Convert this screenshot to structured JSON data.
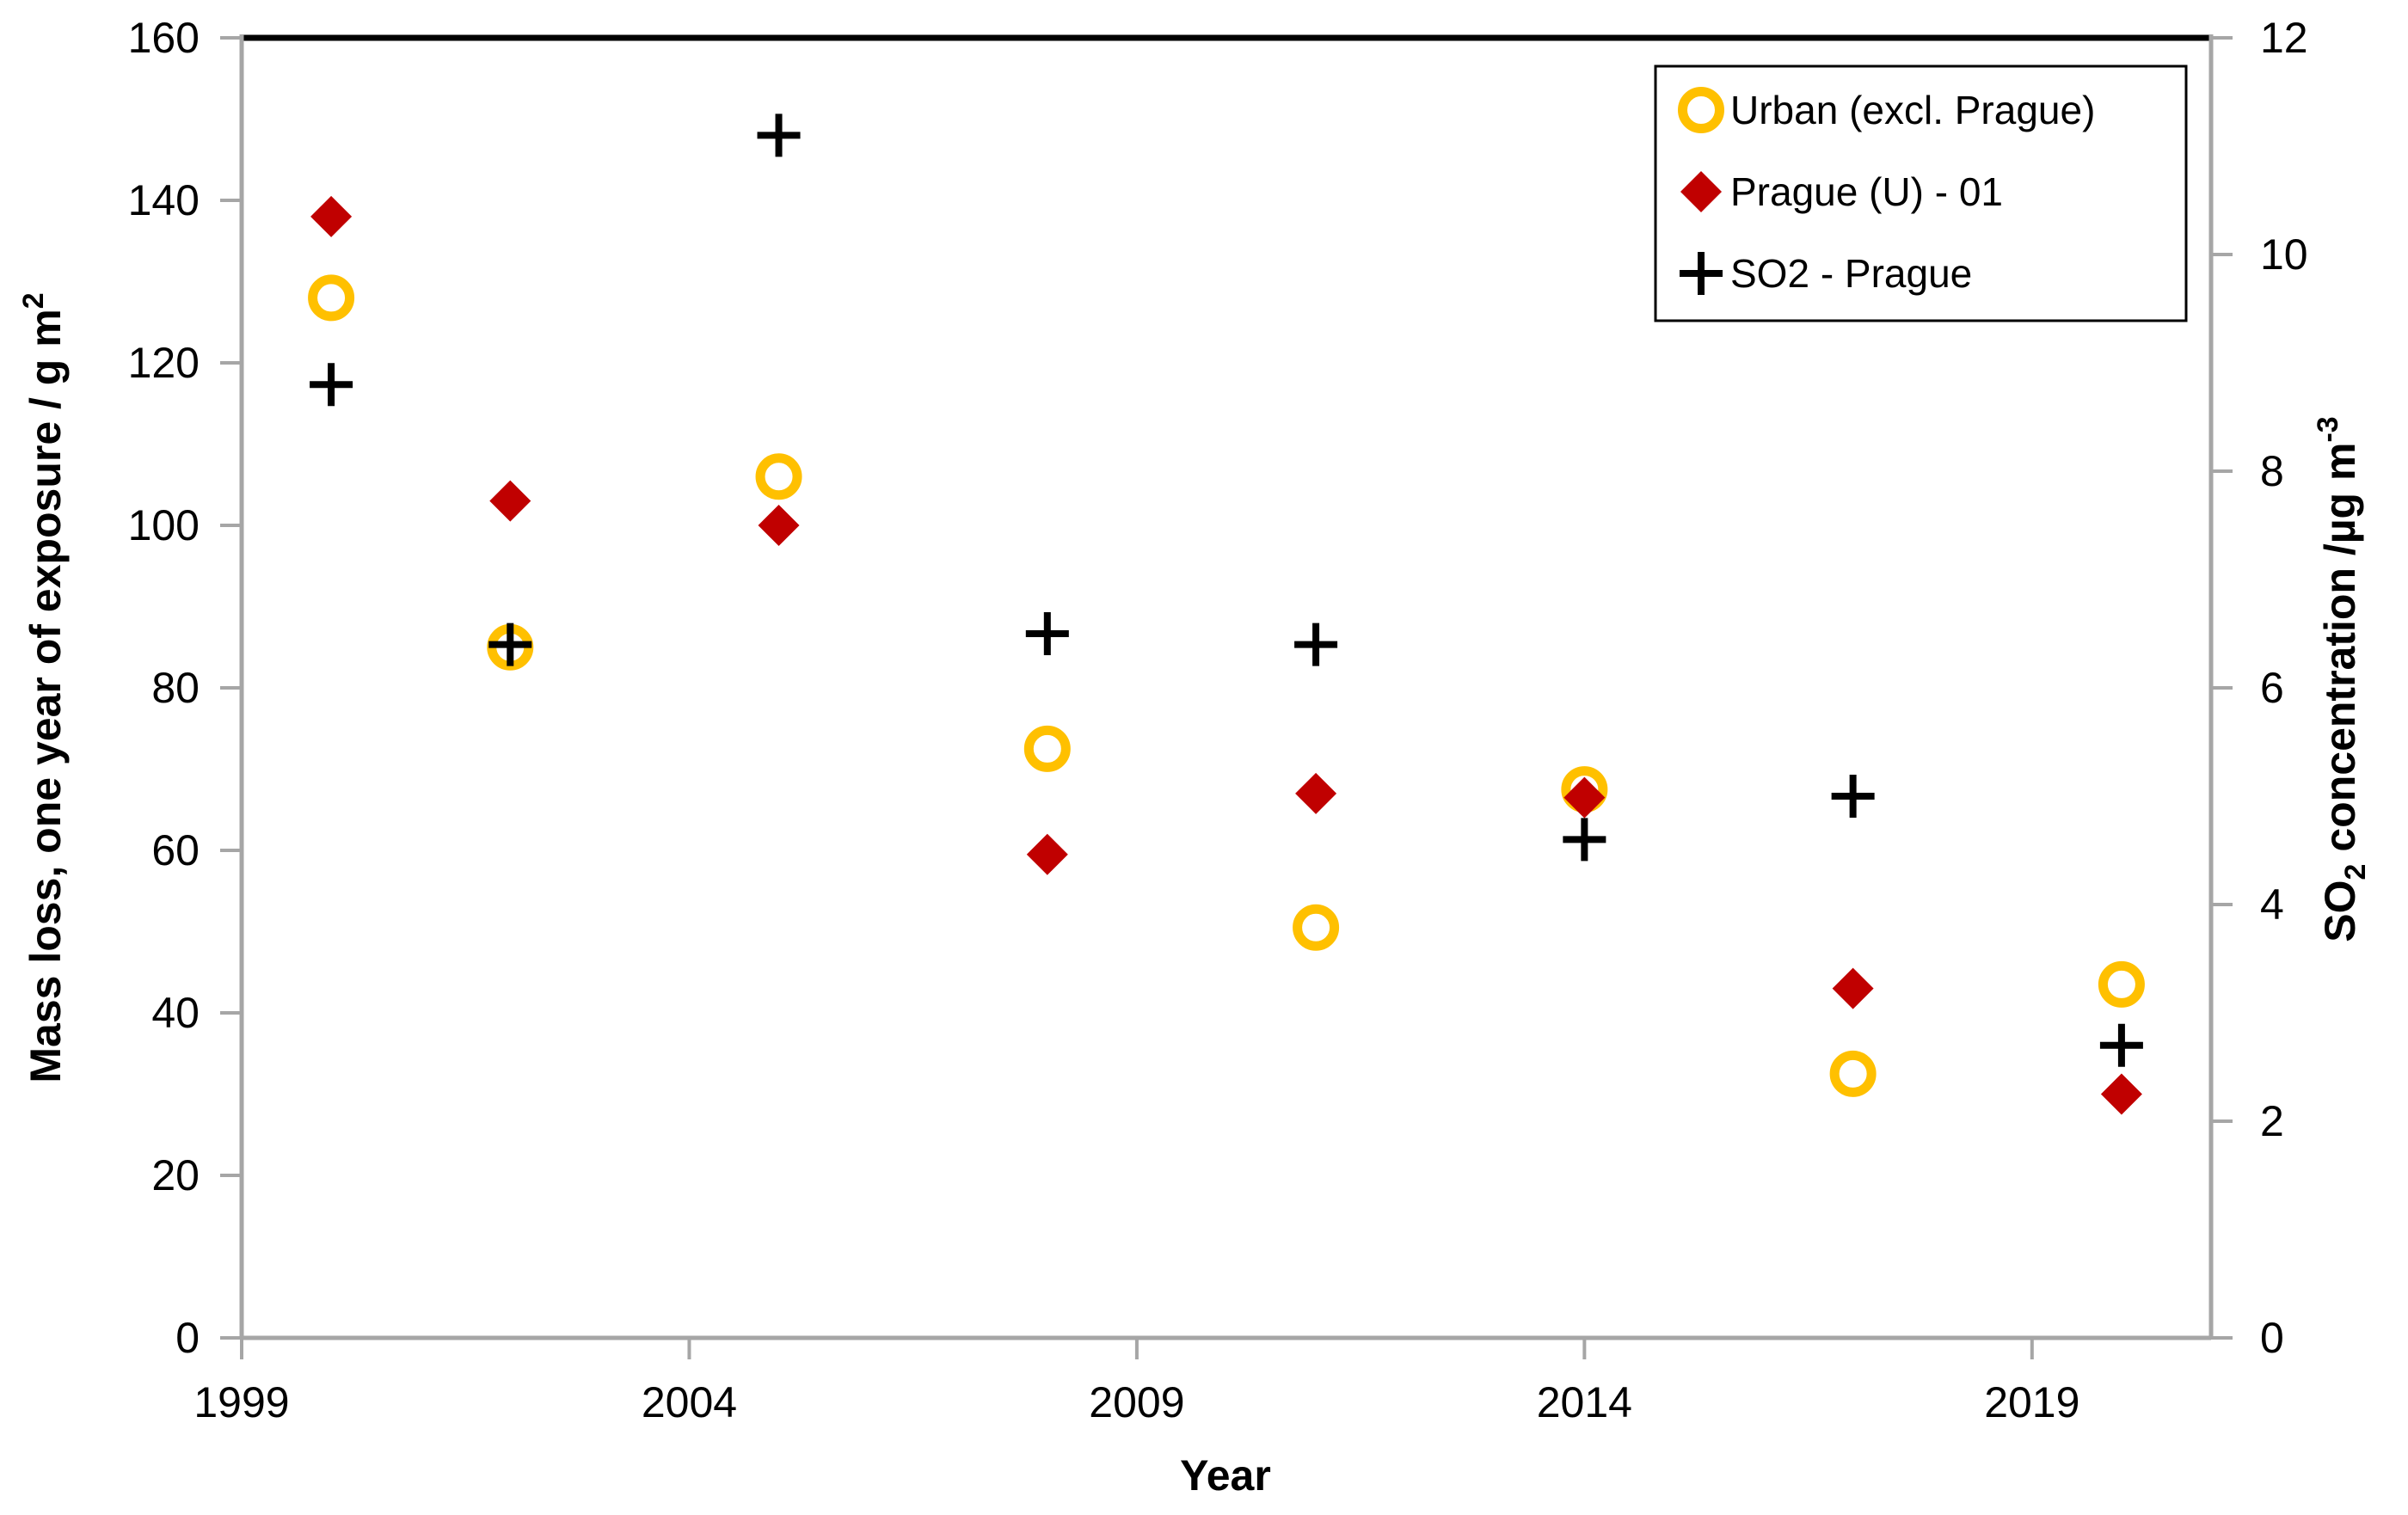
{
  "chart_data": {
    "type": "scatter",
    "x": [
      2000,
      2002,
      2005,
      2008,
      2011,
      2014,
      2017,
      2020
    ],
    "series": [
      {
        "name": "Urban (excl. Prague)",
        "axis": "left",
        "marker": "ring",
        "color": "#FFC000",
        "values": [
          128,
          85,
          106,
          72.5,
          50.5,
          67.5,
          32.5,
          43.5
        ]
      },
      {
        "name": "Prague (U) - 01",
        "axis": "left",
        "marker": "diamond",
        "color": "#C00000",
        "values": [
          138,
          103,
          100,
          59.5,
          67,
          66.5,
          43,
          30
        ]
      },
      {
        "name": "SO2 - Prague",
        "axis": "right",
        "marker": "plus",
        "color": "#000000",
        "values": [
          8.8,
          6.4,
          11.1,
          6.5,
          6.4,
          4.6,
          5.0,
          2.7
        ]
      }
    ],
    "xlabel": "Year",
    "x_ticks": [
      "1999",
      "2004",
      "2009",
      "2014",
      "2019"
    ],
    "xlim": [
      1999,
      2021
    ],
    "left_axis": {
      "ticks": [
        "0",
        "20",
        "40",
        "60",
        "80",
        "100",
        "120",
        "140",
        "160"
      ],
      "lim": [
        0,
        160
      ],
      "title_parts": [
        {
          "t": "Mass loss, one year of exposure / g m"
        },
        {
          "t": "2",
          "style": "sup"
        }
      ]
    },
    "right_axis": {
      "ticks": [
        "0",
        "2",
        "4",
        "6",
        "8",
        "10",
        "12"
      ],
      "lim": [
        0,
        12
      ],
      "title_parts": [
        {
          "t": "SO"
        },
        {
          "t": "2",
          "style": "sub"
        },
        {
          "t": " concentration /µg m"
        },
        {
          "t": "-3",
          "style": "sup"
        }
      ]
    },
    "legend": {
      "position": "top-right",
      "items": [
        "Urban (excl. Prague)",
        "Prague (U) - 01",
        "SO2 - Prague"
      ]
    },
    "grid": false,
    "colors": {
      "axis": "#A6A6A6",
      "border": "#000000",
      "background": "#FFFFFF",
      "urban": "#FFC000",
      "prague": "#C00000",
      "so2": "#000000"
    }
  }
}
